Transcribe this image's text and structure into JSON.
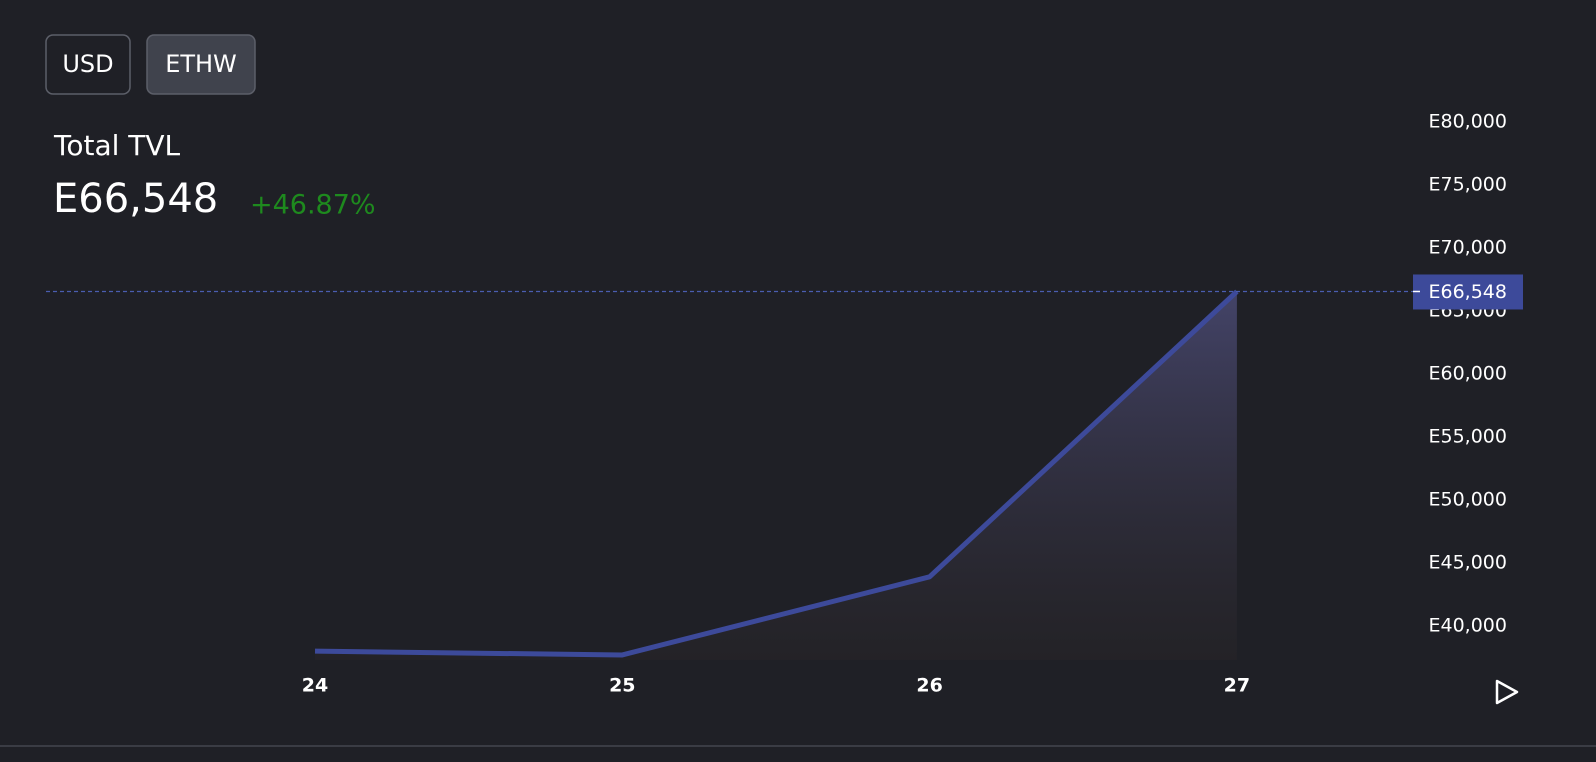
{
  "buttons": [
    "USD",
    "ETHW"
  ],
  "header": {
    "title": "Total TVL",
    "value": "E66,548",
    "change": "+46.87%"
  },
  "chart_data": {
    "type": "area",
    "categories": [
      "24",
      "25",
      "26",
      "27"
    ],
    "values": [
      38000,
      37700,
      43900,
      66548
    ],
    "value_labels": [
      null,
      null,
      null,
      "E66,548"
    ],
    "color": "#3d4a9a",
    "ylim": [
      37300,
      80500
    ],
    "yticks": [
      {
        "value": 40000,
        "label": "E40,000"
      },
      {
        "value": 45000,
        "label": "E45,000"
      },
      {
        "value": 50000,
        "label": "E50,000"
      },
      {
        "value": 55000,
        "label": "E55,000"
      },
      {
        "value": 60000,
        "label": "E60,000"
      },
      {
        "value": 65000,
        "label": "E65,000"
      },
      {
        "value": 70000,
        "label": "E70,000"
      },
      {
        "value": 75000,
        "label": "E75,000"
      },
      {
        "value": 80000,
        "label": "E80,000"
      }
    ]
  }
}
